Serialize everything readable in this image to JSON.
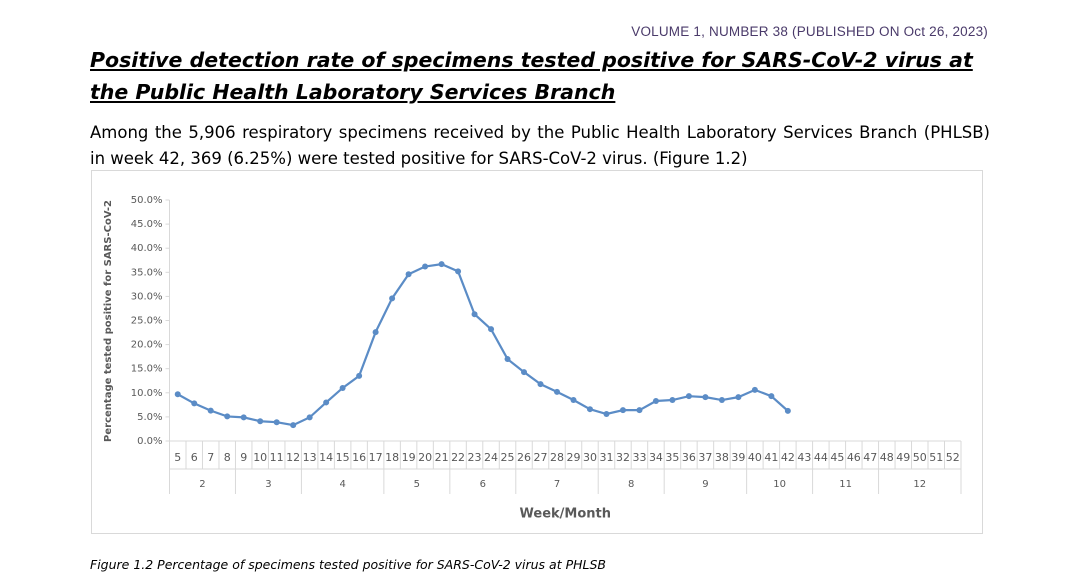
{
  "header": {
    "volume": "VOLUME 1, NUMBER 38 (PUBLISHED ON Oct 26, 2023)"
  },
  "title": "Positive detection rate of specimens tested positive for SARS-CoV-2 virus at the Public Health Laboratory Services Branch",
  "paragraph": "Among the 5,906 respiratory specimens received by the Public Health Laboratory Services Branch (PHLSB) in week 42, 369 (6.25%) were tested positive for SARS-CoV-2 virus. (Figure 1.2)",
  "chart_data": {
    "type": "line",
    "x_label": "Week/Month",
    "y_label": "Percentage tested positive for SARS-CoV-2",
    "categories": [
      "5",
      "6",
      "7",
      "8",
      "9",
      "10",
      "11",
      "12",
      "13",
      "14",
      "15",
      "16",
      "17",
      "18",
      "19",
      "20",
      "21",
      "22",
      "23",
      "24",
      "25",
      "26",
      "27",
      "28",
      "29",
      "30",
      "31",
      "32",
      "33",
      "34",
      "35",
      "36",
      "37",
      "38",
      "39",
      "40",
      "41",
      "42",
      "43",
      "44",
      "45",
      "46",
      "47",
      "48",
      "49",
      "50",
      "51",
      "52"
    ],
    "month_groups": [
      {
        "label": "2",
        "span": 4
      },
      {
        "label": "3",
        "span": 4
      },
      {
        "label": "4",
        "span": 5
      },
      {
        "label": "5",
        "span": 4
      },
      {
        "label": "6",
        "span": 4
      },
      {
        "label": "7",
        "span": 5
      },
      {
        "label": "8",
        "span": 4
      },
      {
        "label": "9",
        "span": 5
      },
      {
        "label": "10",
        "span": 4
      },
      {
        "label": "11",
        "span": 4
      },
      {
        "label": "12",
        "span": 5
      }
    ],
    "series": [
      {
        "color": "#5b8cc6",
        "values": [
          9.7,
          7.8,
          6.3,
          5.1,
          4.9,
          4.1,
          3.9,
          3.3,
          4.9,
          8.0,
          11.0,
          13.5,
          22.6,
          29.6,
          34.6,
          36.2,
          36.7,
          35.2,
          26.3,
          23.2,
          17.0,
          14.3,
          11.8,
          10.2,
          8.5,
          6.6,
          5.6,
          6.4,
          6.4,
          8.3,
          8.5,
          9.3,
          9.1,
          8.5,
          9.1,
          10.6,
          9.3,
          6.25,
          null,
          null,
          null,
          null,
          null,
          null,
          null,
          null,
          null,
          null
        ]
      }
    ],
    "ylim": [
      0,
      50
    ],
    "yticks": [
      {
        "value": 0,
        "label": "0.0%"
      },
      {
        "value": 5,
        "label": "5.0%"
      },
      {
        "value": 10,
        "label": "10.0%"
      },
      {
        "value": 15,
        "label": "15.0%"
      },
      {
        "value": 20,
        "label": "20.0%"
      },
      {
        "value": 25,
        "label": "25.0%"
      },
      {
        "value": 30,
        "label": "30.0%"
      },
      {
        "value": 35,
        "label": "35.0%"
      },
      {
        "value": 40,
        "label": "40.0%"
      },
      {
        "value": 45,
        "label": "45.0%"
      },
      {
        "value": 50,
        "label": "50.0%"
      }
    ],
    "grid": false
  },
  "caption": "Figure 1.2 Percentage of specimens tested positive for SARS-CoV-2 virus at PHLSB"
}
